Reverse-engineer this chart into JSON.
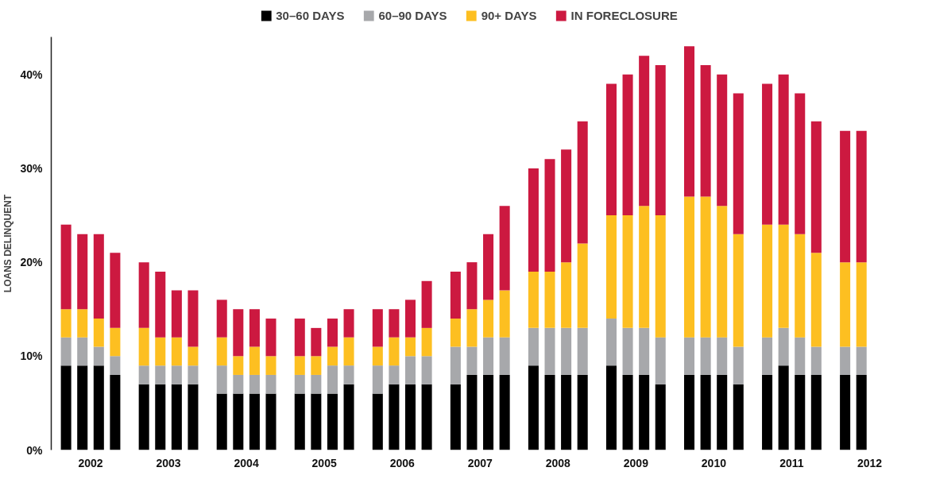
{
  "chart_data": {
    "type": "bar",
    "stacked": true,
    "ylabel": "LOANS DELINQUENT",
    "legend": "top",
    "grid": false,
    "x": [
      2002,
      2002.21,
      2002.42,
      2002.63,
      2003,
      2003.21,
      2003.42,
      2003.63,
      2004,
      2004.21,
      2004.42,
      2004.63,
      2005,
      2005.21,
      2005.42,
      2005.63,
      2006,
      2006.21,
      2006.42,
      2006.63,
      2007,
      2007.21,
      2007.42,
      2007.63,
      2008,
      2008.21,
      2008.42,
      2008.63,
      2009,
      2009.21,
      2009.42,
      2009.63,
      2010,
      2010.21,
      2010.42,
      2010.63,
      2011,
      2011.21,
      2011.42,
      2011.63,
      2012,
      2012.21
    ],
    "xlim": [
      2001.81,
      2012.315
    ],
    "xticks": [
      {
        "value": 2002.315,
        "label": "2002"
      },
      {
        "value": 2003.315,
        "label": "2003"
      },
      {
        "value": 2004.315,
        "label": "2004"
      },
      {
        "value": 2005.315,
        "label": "2005"
      },
      {
        "value": 2006.315,
        "label": "2006"
      },
      {
        "value": 2007.315,
        "label": "2007"
      },
      {
        "value": 2008.315,
        "label": "2008"
      },
      {
        "value": 2009.315,
        "label": "2009"
      },
      {
        "value": 2010.315,
        "label": "2010"
      },
      {
        "value": 2011.315,
        "label": "2011"
      },
      {
        "value": 2012.315,
        "label": "2012"
      }
    ],
    "ylim": [
      0,
      44
    ],
    "yticks": [
      {
        "value": 0,
        "label": "0%"
      },
      {
        "value": 10,
        "label": "10%"
      },
      {
        "value": 20,
        "label": "20%"
      },
      {
        "value": 30,
        "label": "30%"
      },
      {
        "value": 40,
        "label": "40%"
      }
    ],
    "series": [
      {
        "name": "30–60 DAYS",
        "color": "#000000",
        "values": [
          9,
          9,
          9,
          8,
          7,
          7,
          7,
          7,
          6,
          6,
          6,
          6,
          6,
          6,
          6,
          7,
          6,
          7,
          7,
          7,
          7,
          8,
          8,
          8,
          9,
          8,
          8,
          8,
          9,
          8,
          8,
          7,
          8,
          8,
          8,
          7,
          8,
          9,
          8,
          8,
          8,
          8
        ]
      },
      {
        "name": "60–90 DAYS",
        "color": "#a7a8ab",
        "values": [
          3,
          3,
          2,
          2,
          2,
          2,
          2,
          2,
          3,
          2,
          2,
          2,
          2,
          2,
          3,
          2,
          3,
          2,
          3,
          3,
          4,
          3,
          4,
          4,
          4,
          5,
          5,
          5,
          5,
          5,
          5,
          5,
          4,
          4,
          4,
          4,
          4,
          4,
          4,
          3,
          3,
          3
        ]
      },
      {
        "name": "90+ DAYS",
        "color": "#fdbf21",
        "values": [
          3,
          3,
          3,
          3,
          4,
          3,
          3,
          2,
          3,
          2,
          3,
          2,
          2,
          2,
          2,
          3,
          2,
          3,
          2,
          3,
          3,
          4,
          4,
          5,
          6,
          6,
          7,
          9,
          11,
          12,
          13,
          13,
          15,
          15,
          14,
          12,
          12,
          11,
          11,
          10,
          9,
          9
        ]
      },
      {
        "name": "IN FORECLOSURE",
        "color": "#cc1940",
        "values": [
          9,
          8,
          9,
          8,
          7,
          7,
          5,
          6,
          4,
          5,
          4,
          4,
          4,
          3,
          3,
          3,
          4,
          3,
          4,
          5,
          5,
          5,
          7,
          9,
          11,
          12,
          12,
          13,
          14,
          15,
          16,
          16,
          16,
          14,
          14,
          15,
          15,
          16,
          15,
          14,
          14,
          14
        ]
      }
    ]
  }
}
